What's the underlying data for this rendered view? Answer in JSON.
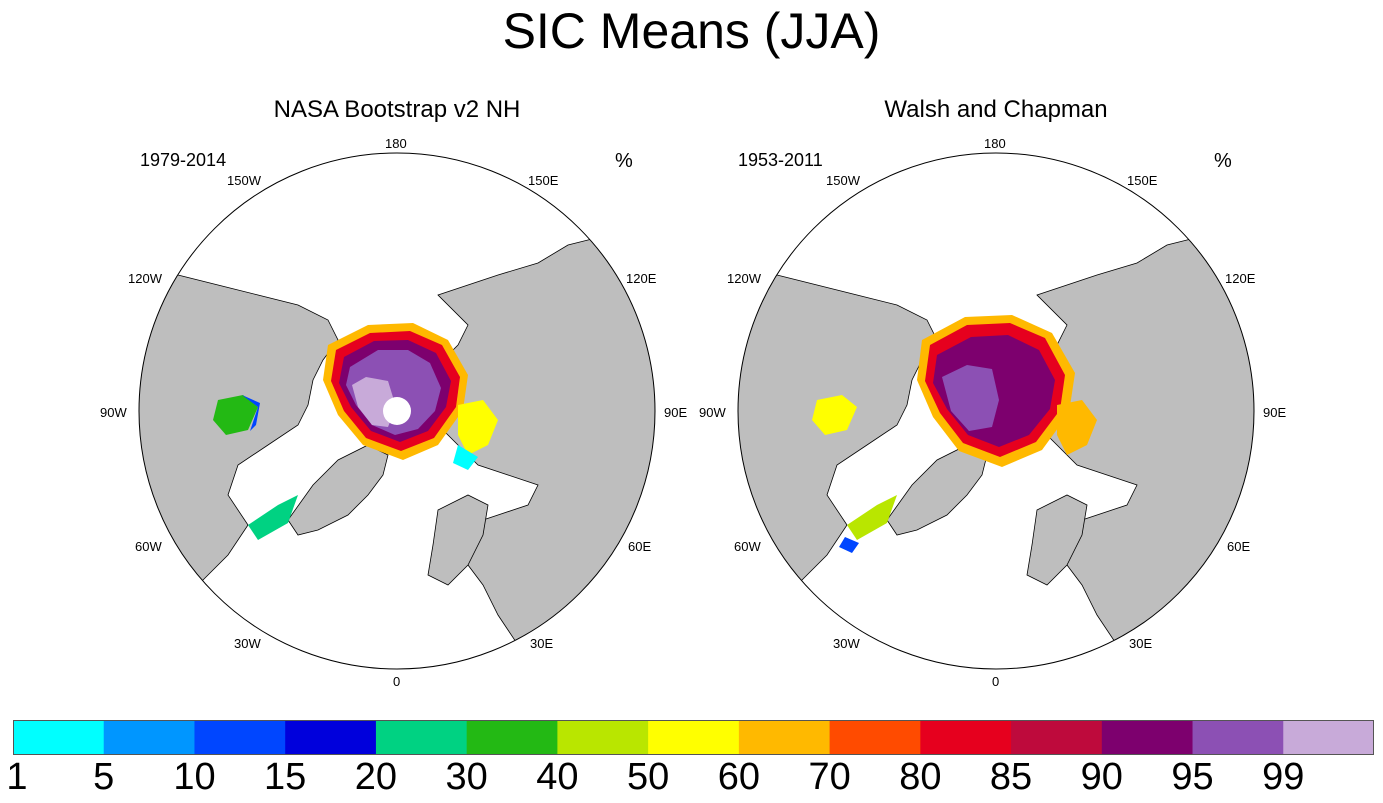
{
  "title": "SIC Means (JJA)",
  "panels": [
    {
      "title": "NASA Bootstrap v2 NH",
      "period": "1979-2014",
      "unit": "%"
    },
    {
      "title": "Walsh and Chapman",
      "period": "1953-2011",
      "unit": "%"
    }
  ],
  "longitude_labels": [
    "180",
    "150E",
    "120E",
    "90E",
    "60E",
    "30E",
    "0",
    "30W",
    "60W",
    "90W",
    "120W",
    "150W"
  ],
  "colorbar": {
    "levels": [
      "1",
      "5",
      "10",
      "15",
      "20",
      "30",
      "40",
      "50",
      "60",
      "70",
      "80",
      "85",
      "90",
      "95",
      "99"
    ],
    "colors": [
      "#00ffff",
      "#0096ff",
      "#0046ff",
      "#0000dc",
      "#00d282",
      "#23b914",
      "#b9e600",
      "#ffff00",
      "#ffb900",
      "#ff4b00",
      "#e6001e",
      "#be0a3c",
      "#7d006e",
      "#8c50b4",
      "#c8aad9"
    ]
  },
  "colors": {
    "land": "#bebebe",
    "ocean": "#ffffff",
    "coast": "#000000"
  },
  "chart_data": {
    "type": "heatmap",
    "projection": "north polar stereographic",
    "variable": "Sea ice concentration (%)",
    "season": "JJA",
    "panels": [
      {
        "name": "NASA Bootstrap v2 NH",
        "period": "1979-2014",
        "pole_hole": true,
        "central_arctic_range": "95-100",
        "marginal_seas_range": "1-80"
      },
      {
        "name": "Walsh and Chapman",
        "period": "1953-2011",
        "pole_hole": false,
        "central_arctic_range": "90-99",
        "marginal_seas_range": "1-80"
      }
    ]
  }
}
